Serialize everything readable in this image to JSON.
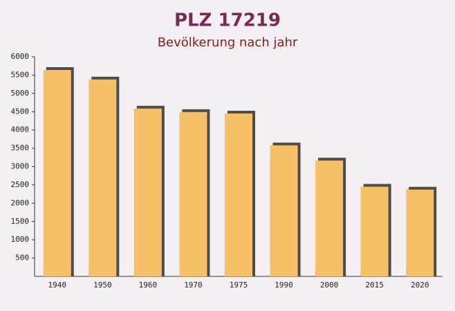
{
  "chart_data": {
    "type": "bar",
    "title": "PLZ 17219",
    "subtitle": "Bevölkerung nach jahr",
    "categories": [
      "1940",
      "1950",
      "1960",
      "1970",
      "1975",
      "1990",
      "2000",
      "2015",
      "2020"
    ],
    "values": [
      5640,
      5380,
      4585,
      4490,
      4450,
      3580,
      3165,
      2450,
      2370
    ],
    "color": "#f5c068",
    "ylim": [
      0,
      6000
    ],
    "yticks": [
      500,
      1000,
      1500,
      2000,
      2500,
      3000,
      3500,
      4000,
      4500,
      5000,
      5500,
      6000
    ]
  }
}
